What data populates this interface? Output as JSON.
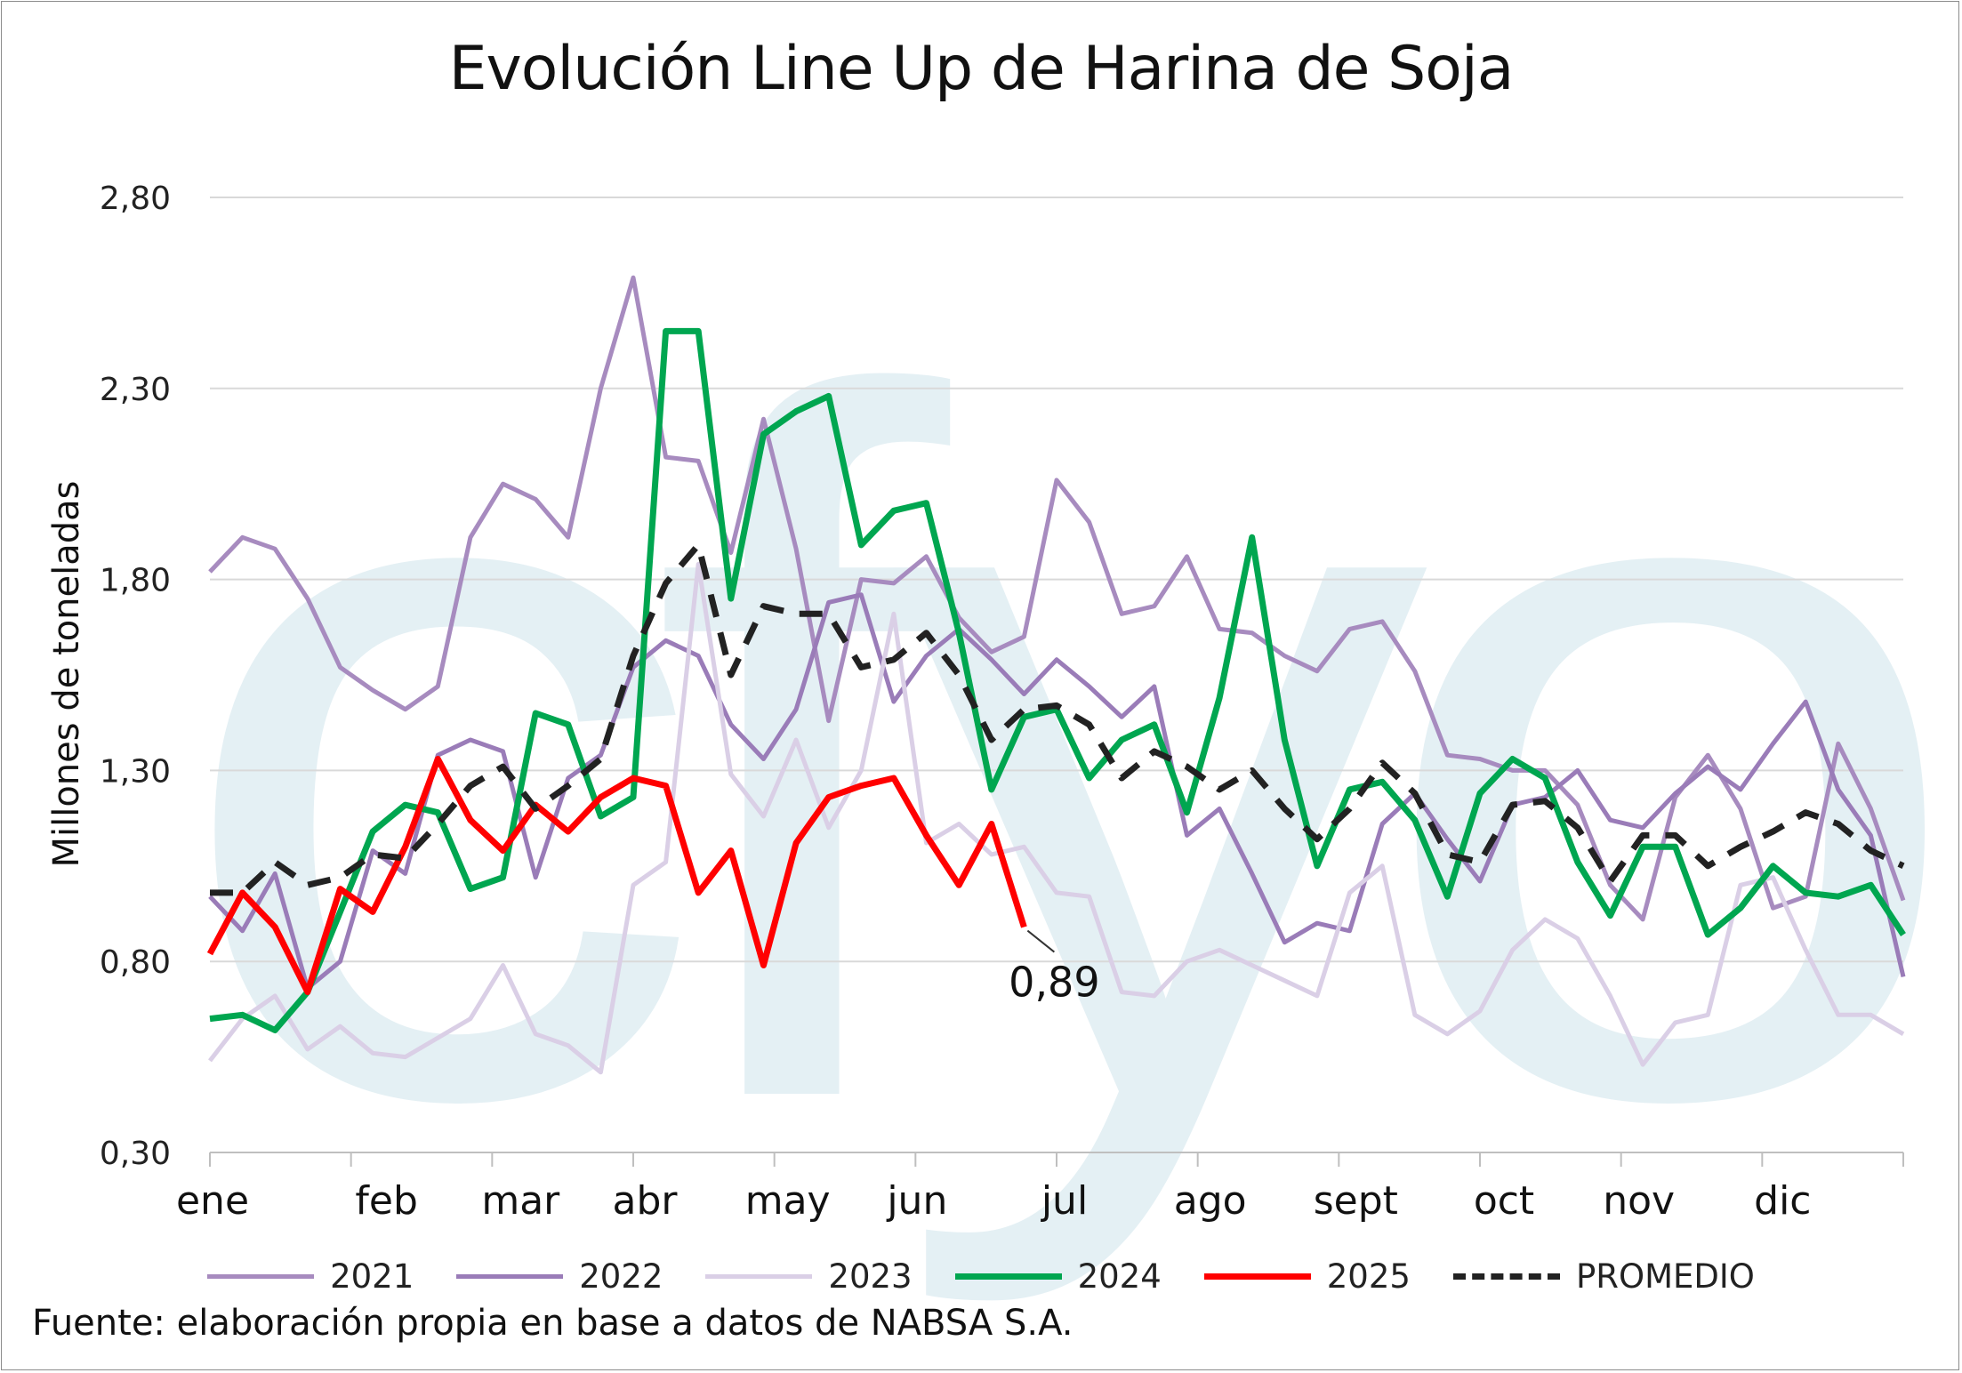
{
  "chart_data": {
    "type": "line",
    "title": "Evolución Line Up de Harina de Soja",
    "ylabel": "Millones de toneladas",
    "xlabel": "",
    "ylim": [
      0.3,
      2.8
    ],
    "yticks": [
      "0,30",
      "0,80",
      "1,30",
      "1,80",
      "2,30",
      "2,80"
    ],
    "ytick_values": [
      0.3,
      0.8,
      1.3,
      1.8,
      2.3,
      2.8
    ],
    "months": [
      "ene",
      "feb",
      "mar",
      "abr",
      "may",
      "jun",
      "jul",
      "ago",
      "sept",
      "oct",
      "nov",
      "dic"
    ],
    "weeks_per_year": 53,
    "grid": true,
    "legend_position": "bottom",
    "annotation": {
      "text": "0,89",
      "series": "2025",
      "x": 25,
      "y": 0.89
    },
    "watermark": "cfyo",
    "series": [
      {
        "name": "2021",
        "color": "#a78bbf",
        "dash": "",
        "width": 5,
        "x": [
          0,
          1,
          2,
          3,
          4,
          5,
          6,
          7,
          8,
          9,
          10,
          11,
          12,
          13,
          14,
          15,
          16,
          17,
          18,
          19,
          20,
          21,
          22,
          23,
          24,
          25,
          26,
          27,
          28,
          29,
          30,
          31,
          32,
          33,
          34,
          35,
          36,
          37,
          38,
          39,
          40,
          41,
          42,
          43,
          44,
          45,
          46,
          47,
          48,
          49,
          50,
          51,
          52
        ],
        "values": [
          1.82,
          1.91,
          1.88,
          1.75,
          1.57,
          1.51,
          1.46,
          1.52,
          1.91,
          2.05,
          2.01,
          1.91,
          2.3,
          2.59,
          2.12,
          2.11,
          1.87,
          2.22,
          1.88,
          1.43,
          1.8,
          1.79,
          1.86,
          1.7,
          1.61,
          1.65,
          2.06,
          1.95,
          1.71,
          1.73,
          1.86,
          1.67,
          1.66,
          1.6,
          1.56,
          1.67,
          1.69,
          1.56,
          1.34,
          1.33,
          1.3,
          1.3,
          1.21,
          1.0,
          0.91,
          1.23,
          1.34,
          1.2,
          0.94,
          0.97,
          1.37,
          1.2,
          0.96
        ]
      },
      {
        "name": "2022",
        "color": "#9a7cb8",
        "dash": "",
        "width": 5,
        "x": [
          0,
          1,
          2,
          3,
          4,
          5,
          6,
          7,
          8,
          9,
          10,
          11,
          12,
          13,
          14,
          15,
          16,
          17,
          18,
          19,
          20,
          21,
          22,
          23,
          24,
          25,
          26,
          27,
          28,
          29,
          30,
          31,
          32,
          33,
          34,
          35,
          36,
          37,
          38,
          39,
          40,
          41,
          42,
          43,
          44,
          45,
          46,
          47,
          48,
          49,
          50,
          51,
          52
        ],
        "values": [
          0.97,
          0.88,
          1.03,
          0.73,
          0.8,
          1.09,
          1.03,
          1.34,
          1.38,
          1.35,
          1.02,
          1.28,
          1.34,
          1.57,
          1.64,
          1.6,
          1.42,
          1.33,
          1.46,
          1.74,
          1.76,
          1.48,
          1.6,
          1.67,
          1.59,
          1.5,
          1.59,
          1.52,
          1.44,
          1.52,
          1.13,
          1.2,
          1.03,
          0.85,
          0.9,
          0.88,
          1.16,
          1.24,
          1.12,
          1.01,
          1.21,
          1.23,
          1.3,
          1.17,
          1.15,
          1.24,
          1.31,
          1.25,
          1.37,
          1.48,
          1.25,
          1.13,
          0.76
        ]
      },
      {
        "name": "2023",
        "color": "#dacfe6",
        "dash": "",
        "width": 5,
        "x": [
          0,
          1,
          2,
          3,
          4,
          5,
          6,
          7,
          8,
          9,
          10,
          11,
          12,
          13,
          14,
          15,
          16,
          17,
          18,
          19,
          20,
          21,
          22,
          23,
          24,
          25,
          26,
          27,
          28,
          29,
          30,
          31,
          32,
          33,
          34,
          35,
          36,
          37,
          38,
          39,
          40,
          41,
          42,
          43,
          44,
          45,
          46,
          47,
          48,
          49,
          50,
          51,
          52
        ],
        "values": [
          0.54,
          0.65,
          0.71,
          0.57,
          0.63,
          0.56,
          0.55,
          0.6,
          0.65,
          0.79,
          0.61,
          0.58,
          0.51,
          1.0,
          1.06,
          1.84,
          1.29,
          1.18,
          1.38,
          1.15,
          1.3,
          1.71,
          1.11,
          1.16,
          1.08,
          1.1,
          0.98,
          0.97,
          0.72,
          0.71,
          0.8,
          0.83,
          0.79,
          0.75,
          0.71,
          0.98,
          1.05,
          0.66,
          0.61,
          0.67,
          0.83,
          0.91,
          0.86,
          0.71,
          0.53,
          0.64,
          0.66,
          1.0,
          1.02,
          0.83,
          0.66,
          0.66,
          0.61
        ]
      },
      {
        "name": "2024",
        "color": "#00a650",
        "dash": "",
        "width": 7,
        "x": [
          0,
          1,
          2,
          3,
          4,
          5,
          6,
          7,
          8,
          9,
          10,
          11,
          12,
          13,
          14,
          15,
          16,
          17,
          18,
          19,
          20,
          21,
          22,
          23,
          24,
          25,
          26,
          27,
          28,
          29,
          30,
          31,
          32,
          33,
          34,
          35,
          36,
          37,
          38,
          39,
          40,
          41,
          42,
          43,
          44,
          45,
          46,
          47,
          48,
          49,
          50,
          51,
          52
        ],
        "values": [
          0.65,
          0.66,
          0.62,
          0.72,
          0.93,
          1.14,
          1.21,
          1.19,
          0.99,
          1.02,
          1.45,
          1.42,
          1.18,
          1.23,
          2.45,
          2.45,
          1.75,
          2.18,
          2.24,
          2.28,
          1.89,
          1.98,
          2.0,
          1.66,
          1.25,
          1.44,
          1.46,
          1.28,
          1.38,
          1.42,
          1.19,
          1.49,
          1.91,
          1.38,
          1.05,
          1.25,
          1.27,
          1.17,
          0.97,
          1.24,
          1.33,
          1.28,
          1.06,
          0.92,
          1.1,
          1.1,
          0.87,
          0.94,
          1.05,
          0.98,
          0.97,
          1.0,
          0.87
        ]
      },
      {
        "name": "2025",
        "color": "#ff0000",
        "dash": "",
        "width": 7,
        "x": [
          0,
          1,
          2,
          3,
          4,
          5,
          6,
          7,
          8,
          9,
          10,
          11,
          12,
          13,
          14,
          15,
          16,
          17,
          18,
          19,
          20,
          21,
          22,
          23,
          24,
          25
        ],
        "values": [
          0.82,
          0.98,
          0.89,
          0.72,
          0.99,
          0.93,
          1.1,
          1.33,
          1.17,
          1.09,
          1.21,
          1.14,
          1.23,
          1.28,
          1.26,
          0.98,
          1.09,
          0.79,
          1.11,
          1.23,
          1.26,
          1.28,
          1.13,
          1.0,
          1.16,
          0.89
        ]
      },
      {
        "name": "PROMEDIO",
        "color": "#222222",
        "dash": "26,18",
        "width": 7,
        "x": [
          0,
          1,
          2,
          3,
          4,
          5,
          6,
          7,
          8,
          9,
          10,
          11,
          12,
          13,
          14,
          15,
          16,
          17,
          18,
          19,
          20,
          21,
          22,
          23,
          24,
          25,
          26,
          27,
          28,
          29,
          30,
          31,
          32,
          33,
          34,
          35,
          36,
          37,
          38,
          39,
          40,
          41,
          42,
          43,
          44,
          45,
          46,
          47,
          48,
          49,
          50,
          51,
          52
        ],
        "values": [
          0.98,
          0.98,
          1.06,
          1.0,
          1.02,
          1.08,
          1.07,
          1.16,
          1.26,
          1.31,
          1.2,
          1.26,
          1.33,
          1.6,
          1.79,
          1.89,
          1.55,
          1.73,
          1.71,
          1.71,
          1.57,
          1.59,
          1.66,
          1.55,
          1.38,
          1.46,
          1.47,
          1.42,
          1.28,
          1.35,
          1.31,
          1.25,
          1.3,
          1.2,
          1.12,
          1.2,
          1.32,
          1.24,
          1.08,
          1.06,
          1.21,
          1.22,
          1.15,
          1.01,
          1.13,
          1.13,
          1.05,
          1.1,
          1.14,
          1.19,
          1.16,
          1.09,
          1.05
        ]
      }
    ]
  },
  "source_note": "Fuente: elaboración propia en base a datos de NABSA S.A."
}
